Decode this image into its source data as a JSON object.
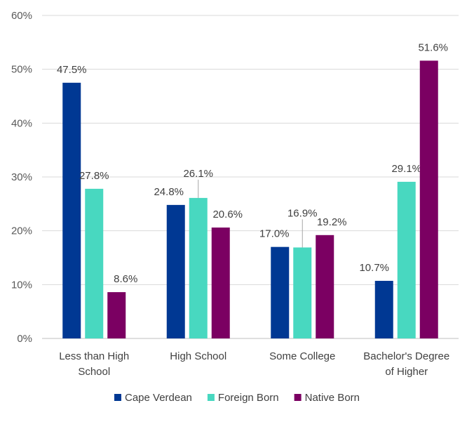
{
  "chart_data": {
    "type": "bar",
    "categories": [
      [
        "Less than High",
        "School"
      ],
      [
        "High School"
      ],
      [
        "Some College"
      ],
      [
        "Bachelor's  Degree",
        "of Higher"
      ]
    ],
    "series": [
      {
        "name": "Cape Verdean",
        "color": "#003893",
        "values": [
          47.5,
          24.8,
          17.0,
          10.7
        ],
        "labels": [
          "47.5%",
          "24.8%",
          "17.0%",
          "10.7%"
        ]
      },
      {
        "name": "Foreign Born",
        "color": "#48D8C0",
        "values": [
          27.8,
          26.1,
          16.9,
          29.1
        ],
        "labels": [
          "27.8%",
          "26.1%",
          "16.9%",
          "29.1%"
        ]
      },
      {
        "name": "Native Born",
        "color": "#7B0062",
        "values": [
          8.6,
          20.6,
          19.2,
          51.6
        ],
        "labels": [
          "8.6%",
          "20.6%",
          "19.2%",
          "51.6%"
        ]
      }
    ],
    "y_ticks": [
      0,
      10,
      20,
      30,
      40,
      50,
      60
    ],
    "y_tick_labels": [
      "0%",
      "10%",
      "20%",
      "30%",
      "40%",
      "50%",
      "60%"
    ],
    "ylim": [
      0,
      60
    ],
    "grid": true,
    "legend_position": "bottom"
  }
}
